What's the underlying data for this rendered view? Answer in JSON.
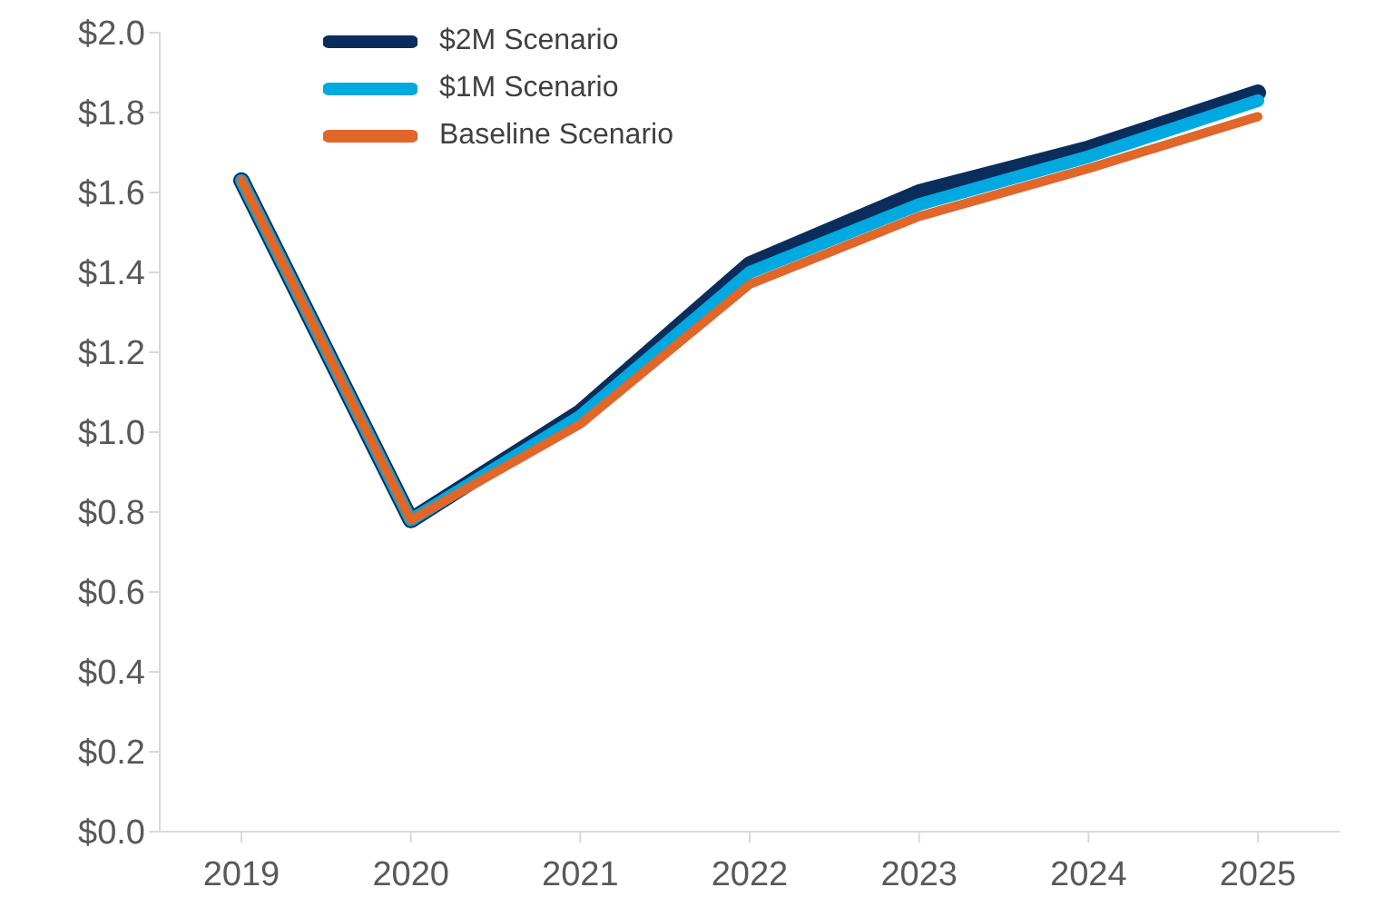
{
  "chart_data": {
    "type": "line",
    "categories": [
      "2019",
      "2020",
      "2021",
      "2022",
      "2023",
      "2024",
      "2025"
    ],
    "series": [
      {
        "name": "$2M Scenario",
        "color": "#0b2d5b",
        "values": [
          1.63,
          0.78,
          1.05,
          1.42,
          1.6,
          1.71,
          1.85
        ]
      },
      {
        "name": "$1M Scenario",
        "color": "#00a9e0",
        "values": [
          1.63,
          0.78,
          1.04,
          1.4,
          1.57,
          1.69,
          1.83
        ]
      },
      {
        "name": "Baseline Scenario",
        "color": "#e0662a",
        "values": [
          1.63,
          0.78,
          1.02,
          1.37,
          1.54,
          1.66,
          1.79
        ]
      }
    ],
    "ylim": [
      0,
      2.0
    ],
    "yticks": [
      {
        "value": 0,
        "label": "$0.0"
      },
      {
        "value": 0.2,
        "label": "$0.2"
      },
      {
        "value": 0.4,
        "label": "$0.4"
      },
      {
        "value": 0.6,
        "label": "$0.6"
      },
      {
        "value": 0.8,
        "label": "$0.8"
      },
      {
        "value": 1.0,
        "label": "$1.0"
      },
      {
        "value": 1.2,
        "label": "$1.2"
      },
      {
        "value": 1.4,
        "label": "$1.4"
      },
      {
        "value": 1.6,
        "label": "$1.6"
      },
      {
        "value": 1.8,
        "label": "$1.8"
      },
      {
        "value": 2.0,
        "label": "$2.0"
      }
    ],
    "grid": false,
    "legend": "top left",
    "marker": "none",
    "line_style": "solid"
  }
}
